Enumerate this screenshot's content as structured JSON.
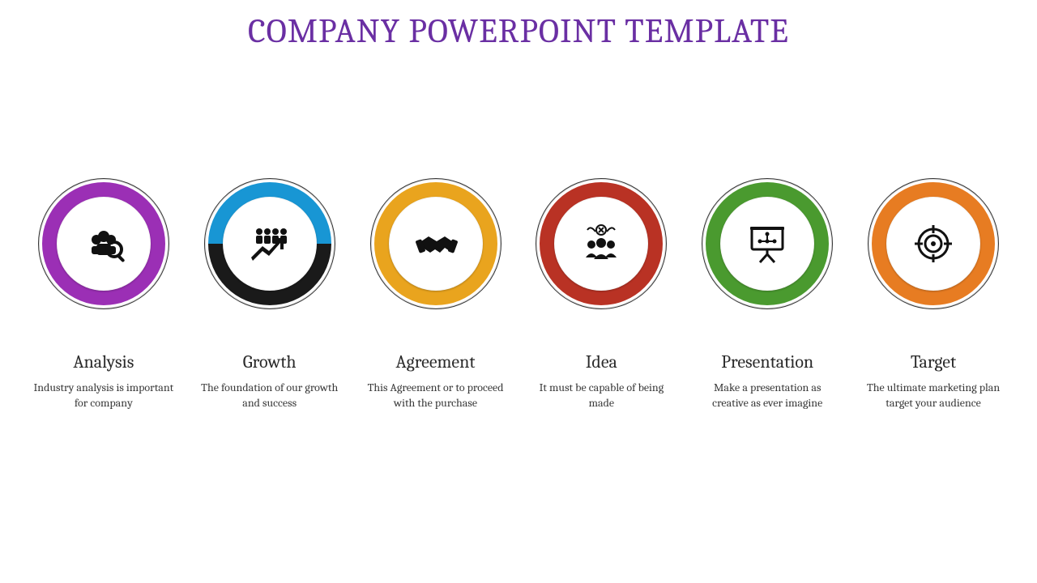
{
  "title": {
    "text": "COMPANY POWERPOINT TEMPLATE",
    "color": "#6a2fa3",
    "fontsize": 42
  },
  "background_color": "#ffffff",
  "ring": {
    "outer_diameter": 162,
    "band_thickness": 18,
    "black": "#1a1a1a",
    "border_color": "#333333"
  },
  "items": [
    {
      "label": "Analysis",
      "desc": "Industry analysis is important for company",
      "accent": "#9b2fb5",
      "icon": "analysis-icon",
      "segments": [
        {
          "start": 300,
          "end": 360,
          "color": "#9b2fb5"
        },
        {
          "start": 0,
          "end": 300,
          "color": "#1a1a1a"
        }
      ]
    },
    {
      "label": "Growth",
      "desc": "The foundation of our growth and success",
      "accent": "#1896d4",
      "icon": "growth-icon",
      "segments": [
        {
          "start": 60,
          "end": 180,
          "color": "#1896d4"
        },
        {
          "start": 180,
          "end": 420,
          "color": "#1a1a1a"
        }
      ]
    },
    {
      "label": "Agreement",
      "desc": "This Agreement or to proceed with the purchase",
      "accent": "#e9a41e",
      "icon": "agreement-icon",
      "segments": [
        {
          "start": 300,
          "end": 360,
          "color": "#e9a41e"
        },
        {
          "start": 0,
          "end": 60,
          "color": "#1a1a1a"
        },
        {
          "start": 60,
          "end": 120,
          "color": "#e9a41e"
        },
        {
          "start": 120,
          "end": 180,
          "color": "#1a1a1a"
        },
        {
          "start": 180,
          "end": 240,
          "color": "#e9a41e"
        },
        {
          "start": 240,
          "end": 300,
          "color": "#1a1a1a"
        }
      ]
    },
    {
      "label": "Idea",
      "desc": "It must be capable of being made",
      "accent": "#b93224",
      "icon": "idea-icon",
      "segments": [
        {
          "start": 285,
          "end": 435,
          "color": "#b93224"
        },
        {
          "start": 75,
          "end": 105,
          "color": "#1a1a1a"
        },
        {
          "start": 105,
          "end": 255,
          "color": "#b93224"
        },
        {
          "start": 255,
          "end": 285,
          "color": "#1a1a1a"
        }
      ]
    },
    {
      "label": "Presentation",
      "desc": "Make a presentation as creative as ever imagine",
      "accent": "#4a9a2f",
      "icon": "presentation-icon",
      "segments": [
        {
          "start": 200,
          "end": 520,
          "color": "#4a9a2f"
        },
        {
          "start": 160,
          "end": 200,
          "color": "#1a1a1a"
        }
      ]
    },
    {
      "label": "Target",
      "desc": "The ultimate marketing plan target your audience",
      "accent": "#e77c22",
      "icon": "target-icon",
      "segments": [
        {
          "start": 300,
          "end": 420,
          "color": "#e77c22"
        },
        {
          "start": 60,
          "end": 120,
          "color": "#1a1a1a"
        },
        {
          "start": 120,
          "end": 240,
          "color": "#e77c22"
        },
        {
          "start": 240,
          "end": 300,
          "color": "#1a1a1a"
        }
      ]
    }
  ]
}
